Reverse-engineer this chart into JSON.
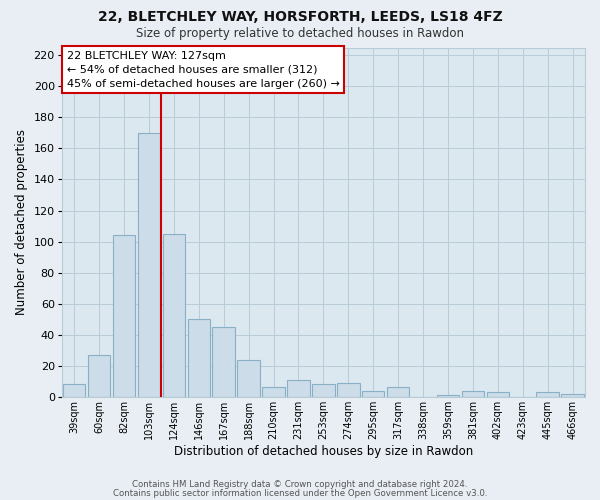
{
  "title": "22, BLETCHLEY WAY, HORSFORTH, LEEDS, LS18 4FZ",
  "subtitle": "Size of property relative to detached houses in Rawdon",
  "xlabel": "Distribution of detached houses by size in Rawdon",
  "ylabel": "Number of detached properties",
  "bar_labels": [
    "39sqm",
    "60sqm",
    "82sqm",
    "103sqm",
    "124sqm",
    "146sqm",
    "167sqm",
    "188sqm",
    "210sqm",
    "231sqm",
    "253sqm",
    "274sqm",
    "295sqm",
    "317sqm",
    "338sqm",
    "359sqm",
    "381sqm",
    "402sqm",
    "423sqm",
    "445sqm",
    "466sqm"
  ],
  "bar_values": [
    8,
    27,
    104,
    170,
    105,
    50,
    45,
    24,
    6,
    11,
    8,
    9,
    4,
    6,
    0,
    1,
    4,
    3,
    0,
    3,
    2
  ],
  "bar_color": "#ccdce8",
  "bar_edge_color": "#8ab0c8",
  "vline_index": 3,
  "vline_color": "#cc0000",
  "annotation_title": "22 BLETCHLEY WAY: 127sqm",
  "annotation_line1": "← 54% of detached houses are smaller (312)",
  "annotation_line2": "45% of semi-detached houses are larger (260) →",
  "ylim": [
    0,
    225
  ],
  "yticks": [
    0,
    20,
    40,
    60,
    80,
    100,
    120,
    140,
    160,
    180,
    200,
    220
  ],
  "footer1": "Contains HM Land Registry data © Crown copyright and database right 2024.",
  "footer2": "Contains public sector information licensed under the Open Government Licence v3.0.",
  "bg_color": "#e8eef4",
  "plot_bg_color": "#dce8f0",
  "grid_color": "#b8ccd8"
}
